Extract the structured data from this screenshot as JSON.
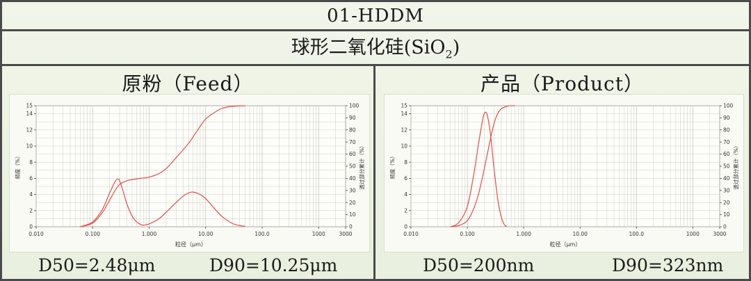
{
  "header": {
    "code": "01-HDDM",
    "material_prefix": "球形二氧化硅(SiO",
    "material_sub": "2",
    "material_suffix": ")"
  },
  "panels": [
    {
      "title": "原粉（Feed）",
      "d50": "D50=2.48μm",
      "d90": "D90=10.25μm"
    },
    {
      "title": "产品（Product）",
      "d50": "D50=200nm",
      "d90": "D90=323nm"
    }
  ],
  "colors": {
    "curve": "#e0504a",
    "grid": "#bfbfbf",
    "border": "#4a4a4a"
  },
  "chart_data": [
    {
      "type": "line",
      "xscale": "log",
      "xlim": [
        0.01,
        3000
      ],
      "xticks": [
        "0.010",
        "0.100",
        "1.000",
        "10.00",
        "100.0",
        "1000",
        "3000"
      ],
      "xtick_values": [
        0.01,
        0.1,
        1,
        10,
        100,
        1000,
        3000
      ],
      "xlabel": "粒径（μm）",
      "ylabel_left": "频度（%）",
      "ylabel_right": "透过部分累计（%）",
      "ylim_left": [
        0,
        15
      ],
      "yticks_left": [
        "0",
        "2",
        "4",
        "6",
        "8",
        "10",
        "12",
        "14",
        "15"
      ],
      "ylim_right": [
        0,
        100
      ],
      "yticks_right": [
        "0",
        "10",
        "20",
        "30",
        "40",
        "50",
        "60",
        "70",
        "80",
        "90",
        "100"
      ],
      "grid": true,
      "series": [
        {
          "axis": "left",
          "x": [
            0.06,
            0.1,
            0.15,
            0.2,
            0.25,
            0.28,
            0.3,
            0.35,
            0.4,
            0.5,
            0.6,
            0.7,
            0.8,
            1.0,
            1.5,
            2,
            3,
            4,
            5,
            6,
            8,
            10,
            15,
            20,
            30,
            40,
            50
          ],
          "y": [
            0,
            0.6,
            2.2,
            4.2,
            5.6,
            5.9,
            5.7,
            4.3,
            2.9,
            1.3,
            0.6,
            0.3,
            0.2,
            0.35,
            1.0,
            1.8,
            3.0,
            3.8,
            4.2,
            4.3,
            4.0,
            3.5,
            2.1,
            1.2,
            0.4,
            0.15,
            0.05
          ]
        },
        {
          "axis": "right",
          "x": [
            0.06,
            0.1,
            0.15,
            0.2,
            0.25,
            0.3,
            0.4,
            0.5,
            0.7,
            1.0,
            1.5,
            2,
            3,
            5,
            7,
            10,
            15,
            20,
            30,
            50
          ],
          "y": [
            0,
            3,
            12,
            22,
            30,
            35,
            38,
            39,
            40,
            41,
            44,
            48,
            57,
            69,
            79,
            89,
            95,
            98,
            99.5,
            100
          ]
        }
      ]
    },
    {
      "type": "line",
      "xscale": "log",
      "xlim": [
        0.01,
        3000
      ],
      "xticks": [
        "0.010",
        "0.100",
        "1.000",
        "10.00",
        "100.0",
        "1000",
        "3000"
      ],
      "xtick_values": [
        0.01,
        0.1,
        1,
        10,
        100,
        1000,
        3000
      ],
      "xlabel": "粒径（μm）",
      "ylabel_left": "频度（%）",
      "ylabel_right": "透过部分累计（%）",
      "ylim_left": [
        0,
        15
      ],
      "yticks_left": [
        "0",
        "2",
        "4",
        "6",
        "8",
        "10",
        "12",
        "14",
        "15"
      ],
      "ylim_right": [
        0,
        100
      ],
      "yticks_right": [
        "0",
        "10",
        "20",
        "30",
        "40",
        "50",
        "60",
        "70",
        "80",
        "90",
        "100"
      ],
      "grid": true,
      "series": [
        {
          "axis": "left",
          "x": [
            0.05,
            0.07,
            0.1,
            0.13,
            0.16,
            0.19,
            0.21,
            0.23,
            0.26,
            0.3,
            0.35,
            0.4,
            0.45,
            0.5
          ],
          "y": [
            0,
            0.5,
            2.5,
            6.5,
            10.5,
            13.5,
            14.2,
            13.6,
            11.2,
            7.0,
            3.2,
            1.2,
            0.3,
            0
          ]
        },
        {
          "axis": "right",
          "x": [
            0.05,
            0.07,
            0.1,
            0.13,
            0.16,
            0.2,
            0.25,
            0.3,
            0.35,
            0.4,
            0.5,
            0.6,
            0.7
          ],
          "y": [
            0,
            1,
            5,
            15,
            28,
            48,
            70,
            86,
            94,
            97.5,
            99.5,
            100,
            100
          ]
        }
      ]
    }
  ]
}
